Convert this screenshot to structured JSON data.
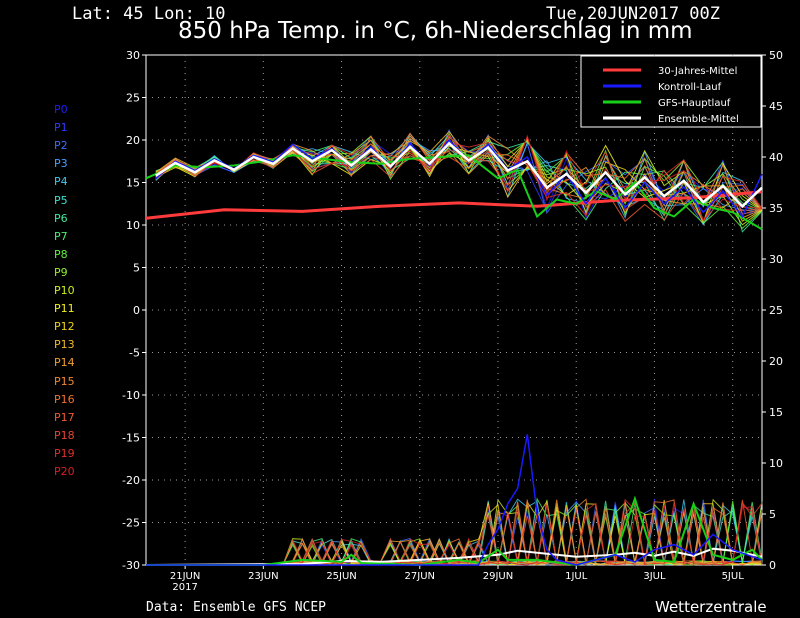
{
  "header": {
    "location": "Lat: 45 Lon: 10",
    "run": "Tue,20JUN2017 00Z"
  },
  "footer": {
    "source": "Data: Ensemble GFS NCEP",
    "brand": "Wetterzentrale"
  },
  "members": [
    {
      "label": "P0",
      "color": "#1e1eff"
    },
    {
      "label": "P1",
      "color": "#2d3cff"
    },
    {
      "label": "P2",
      "color": "#3a6cff"
    },
    {
      "label": "P3",
      "color": "#46a0ff"
    },
    {
      "label": "P4",
      "color": "#40c8f0"
    },
    {
      "label": "P5",
      "color": "#40e0d0"
    },
    {
      "label": "P6",
      "color": "#40e8a0"
    },
    {
      "label": "P7",
      "color": "#48f070"
    },
    {
      "label": "P8",
      "color": "#60f040"
    },
    {
      "label": "P9",
      "color": "#90f030"
    },
    {
      "label": "P10",
      "color": "#c8f020"
    },
    {
      "label": "P11",
      "color": "#f0f020"
    },
    {
      "label": "P12",
      "color": "#f0d020"
    },
    {
      "label": "P13",
      "color": "#f0b830"
    },
    {
      "label": "P14",
      "color": "#f0a030"
    },
    {
      "label": "P15",
      "color": "#f08830"
    },
    {
      "label": "P16",
      "color": "#f07030"
    },
    {
      "label": "P17",
      "color": "#f05a30"
    },
    {
      "label": "P18",
      "color": "#e84430"
    },
    {
      "label": "P19",
      "color": "#e03028"
    },
    {
      "label": "P20",
      "color": "#d82020"
    }
  ],
  "chart_data": {
    "type": "line",
    "title": "850 hPa Temp. in °C, 6h-Niederschlag in mm",
    "x_ticks": [
      {
        "day": 1,
        "label": "21JUN",
        "sublabel": "2017"
      },
      {
        "day": 3,
        "label": "23JUN"
      },
      {
        "day": 5,
        "label": "25JUN"
      },
      {
        "day": 7,
        "label": "27JUN"
      },
      {
        "day": 9,
        "label": "29JUN"
      },
      {
        "day": 11,
        "label": "1JUL"
      },
      {
        "day": 13,
        "label": "3JUL"
      },
      {
        "day": 15,
        "label": "5JUL"
      }
    ],
    "xlim": [
      0,
      15.75
    ],
    "y_left": {
      "lim": [
        -30,
        30
      ],
      "ticks": [
        30,
        25,
        20,
        15,
        10,
        5,
        0,
        -5,
        -10,
        -15,
        -20,
        -25,
        -30
      ]
    },
    "y_right": {
      "lim": [
        0,
        50
      ],
      "ticks": [
        50,
        45,
        40,
        35,
        30,
        25,
        20,
        15,
        10,
        5,
        0
      ]
    },
    "grid": true,
    "legend": {
      "placement": "top-right",
      "entries": [
        {
          "label": "30-Jahres-Mittel",
          "color": "#ff3b3b"
        },
        {
          "label": "Kontroll-Lauf",
          "color": "#1a1aff"
        },
        {
          "label": "GFS-Hauptlauf",
          "color": "#18d018"
        },
        {
          "label": "Ensemble-Mittel",
          "color": "#ffffff"
        }
      ]
    },
    "temperature": {
      "climatology": [
        [
          0,
          10.8
        ],
        [
          2,
          11.8
        ],
        [
          4,
          11.6
        ],
        [
          6,
          12.2
        ],
        [
          8,
          12.6
        ],
        [
          10,
          12.2
        ],
        [
          12,
          12.9
        ],
        [
          14,
          13.2
        ],
        [
          15.75,
          13.9
        ]
      ],
      "control": [
        [
          0.25,
          15.5
        ],
        [
          0.75,
          17.5
        ],
        [
          1.25,
          16.4
        ],
        [
          1.75,
          17.8
        ],
        [
          2.25,
          16.6
        ],
        [
          2.75,
          18.2
        ],
        [
          3.25,
          17.4
        ],
        [
          3.75,
          19.5
        ],
        [
          4.25,
          17.8
        ],
        [
          4.75,
          19.0
        ],
        [
          5.25,
          17.0
        ],
        [
          5.75,
          19.2
        ],
        [
          6.25,
          16.8
        ],
        [
          6.75,
          19.6
        ],
        [
          7.25,
          17.0
        ],
        [
          7.75,
          20.0
        ],
        [
          8.25,
          17.5
        ],
        [
          8.75,
          19.5
        ],
        [
          9.25,
          16.5
        ],
        [
          9.75,
          18.0
        ],
        [
          10.25,
          13.5
        ],
        [
          10.75,
          16.0
        ],
        [
          11.25,
          12.5
        ],
        [
          11.75,
          15.5
        ],
        [
          12.25,
          12.0
        ],
        [
          12.75,
          15.0
        ],
        [
          13.25,
          12.5
        ],
        [
          13.75,
          14.5
        ],
        [
          14.25,
          11.5
        ],
        [
          14.75,
          14.0
        ],
        [
          15.25,
          11.0
        ],
        [
          15.75,
          16.0
        ]
      ],
      "operational": [
        [
          0,
          15.5
        ],
        [
          0.75,
          17.0
        ],
        [
          1.5,
          16.8
        ],
        [
          2.25,
          17.0
        ],
        [
          3,
          17.5
        ],
        [
          3.75,
          18.2
        ],
        [
          4.5,
          17.8
        ],
        [
          5.25,
          17.4
        ],
        [
          6,
          17.2
        ],
        [
          6.75,
          17.8
        ],
        [
          7.5,
          18.0
        ],
        [
          8.25,
          18.2
        ],
        [
          9,
          15.5
        ],
        [
          9.5,
          16.5
        ],
        [
          10,
          11.0
        ],
        [
          10.5,
          13.0
        ],
        [
          11,
          12.5
        ],
        [
          11.5,
          14.0
        ],
        [
          12,
          13.0
        ],
        [
          12.5,
          15.0
        ],
        [
          13,
          12.0
        ],
        [
          13.5,
          11.0
        ],
        [
          14,
          13.0
        ],
        [
          14.5,
          12.0
        ],
        [
          15,
          11.5
        ],
        [
          15.75,
          9.5
        ]
      ],
      "ensemble_mean": [
        [
          0.25,
          15.8
        ],
        [
          0.75,
          17.3
        ],
        [
          1.25,
          16.2
        ],
        [
          1.75,
          17.6
        ],
        [
          2.25,
          16.5
        ],
        [
          2.75,
          18.0
        ],
        [
          3.25,
          17.2
        ],
        [
          3.75,
          19.0
        ],
        [
          4.25,
          17.5
        ],
        [
          4.75,
          18.8
        ],
        [
          5.25,
          17.0
        ],
        [
          5.75,
          18.9
        ],
        [
          6.25,
          16.9
        ],
        [
          6.75,
          19.2
        ],
        [
          7.25,
          17.2
        ],
        [
          7.75,
          19.6
        ],
        [
          8.25,
          17.6
        ],
        [
          8.75,
          19.1
        ],
        [
          9.25,
          16.4
        ],
        [
          9.75,
          17.5
        ],
        [
          10.25,
          14.4
        ],
        [
          10.75,
          16.0
        ],
        [
          11.25,
          13.8
        ],
        [
          11.75,
          16.2
        ],
        [
          12.25,
          13.6
        ],
        [
          12.75,
          15.6
        ],
        [
          13.25,
          13.4
        ],
        [
          13.75,
          15.2
        ],
        [
          14.25,
          12.7
        ],
        [
          14.75,
          14.6
        ],
        [
          15.25,
          12.2
        ],
        [
          15.75,
          14.4
        ]
      ]
    },
    "precipitation": {
      "control": [
        [
          0,
          0
        ],
        [
          8.5,
          0
        ],
        [
          8.75,
          2.0
        ],
        [
          9,
          3.5
        ],
        [
          9.25,
          6.0
        ],
        [
          9.5,
          7.5
        ],
        [
          9.75,
          12.8
        ],
        [
          10,
          5.0
        ],
        [
          10.25,
          1.5
        ],
        [
          10.5,
          0.5
        ],
        [
          11,
          0
        ],
        [
          11.5,
          0.5
        ],
        [
          12,
          1.0
        ],
        [
          12.5,
          0.3
        ],
        [
          13,
          1.5
        ],
        [
          13.5,
          2.0
        ],
        [
          14,
          1.0
        ],
        [
          14.5,
          3.0
        ],
        [
          15,
          1.5
        ],
        [
          15.75,
          0.5
        ]
      ],
      "operational": [
        [
          0,
          0
        ],
        [
          3,
          0
        ],
        [
          4,
          0.5
        ],
        [
          5,
          0.3
        ],
        [
          5.25,
          1.0
        ],
        [
          5.5,
          0.2
        ],
        [
          7,
          0
        ],
        [
          8,
          0.5
        ],
        [
          8.5,
          0.2
        ],
        [
          9,
          1.5
        ],
        [
          9.25,
          0.5
        ],
        [
          10,
          0.5
        ],
        [
          11,
          0
        ],
        [
          12,
          1.0
        ],
        [
          12.5,
          6.5
        ],
        [
          13,
          0.5
        ],
        [
          13.5,
          0.3
        ],
        [
          14,
          6.0
        ],
        [
          14.5,
          1.0
        ],
        [
          15,
          0.5
        ],
        [
          15.5,
          1.5
        ],
        [
          15.75,
          0.5
        ]
      ],
      "ensemble_mean": [
        [
          0,
          0
        ],
        [
          4,
          0.1
        ],
        [
          5,
          0.4
        ],
        [
          6,
          0.3
        ],
        [
          7,
          0.5
        ],
        [
          8,
          0.7
        ],
        [
          9,
          1.0
        ],
        [
          9.5,
          1.4
        ],
        [
          10,
          1.2
        ],
        [
          11,
          0.8
        ],
        [
          12,
          1.0
        ],
        [
          12.5,
          1.2
        ],
        [
          13,
          0.9
        ],
        [
          13.5,
          1.3
        ],
        [
          14,
          0.9
        ],
        [
          14.5,
          1.6
        ],
        [
          15,
          1.4
        ],
        [
          15.75,
          0.8
        ]
      ]
    }
  }
}
